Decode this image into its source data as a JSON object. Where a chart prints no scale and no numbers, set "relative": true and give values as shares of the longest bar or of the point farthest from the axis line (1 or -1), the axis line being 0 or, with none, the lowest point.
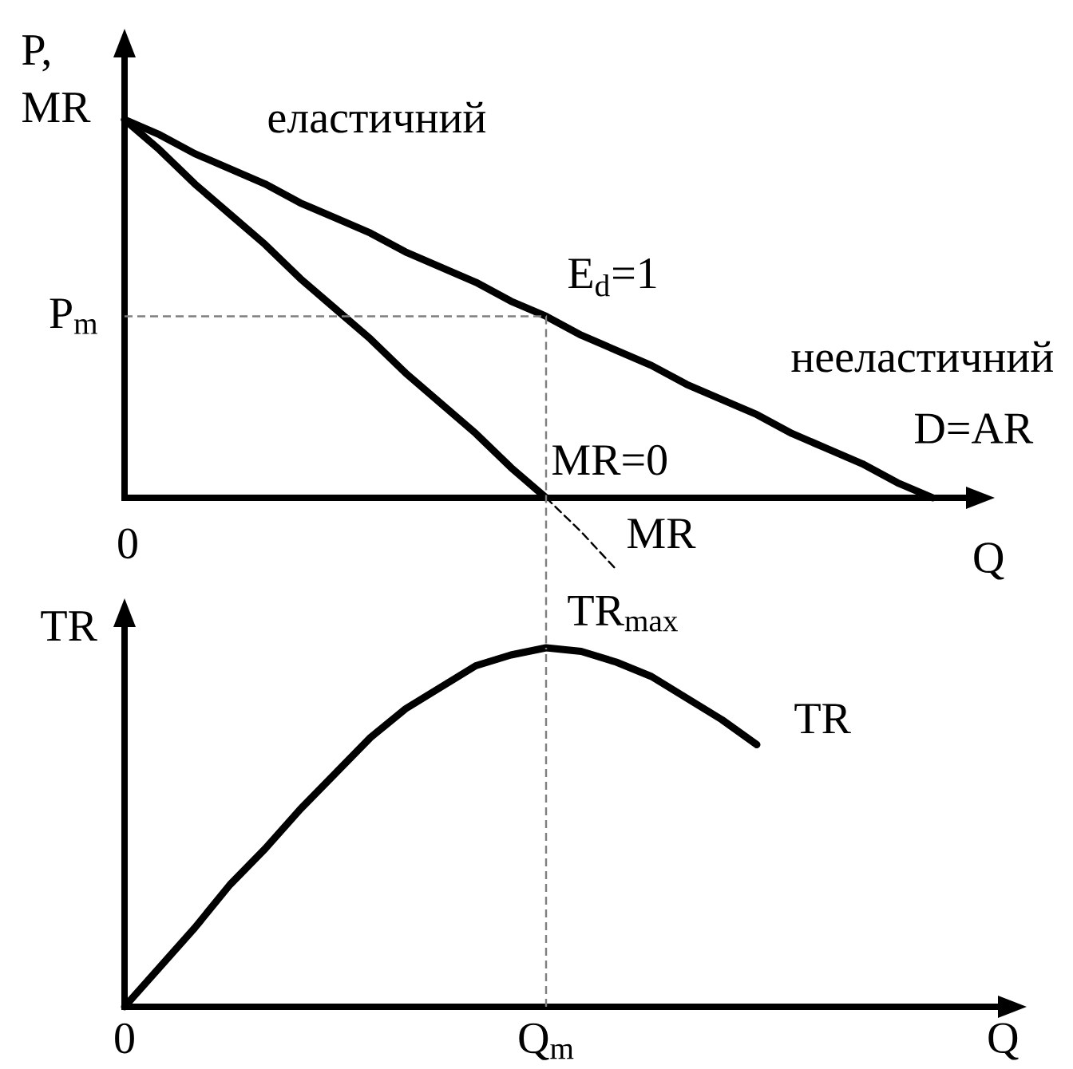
{
  "chart_data": [
    {
      "type": "line",
      "relative": true,
      "xlabel": "Q",
      "ylabel": "P, MR",
      "categories": [
        null,
        null,
        null,
        null,
        null,
        null,
        null,
        null,
        null,
        null,
        null,
        null,
        null,
        null,
        null,
        null,
        null,
        null,
        null,
        null,
        null,
        null,
        null,
        null
      ],
      "series": [
        {
          "name": "D=AR",
          "color": "#000000",
          "values": [
            1,
            0.96,
            0.91,
            0.87,
            0.83,
            0.78,
            0.74,
            0.7,
            0.65,
            0.61,
            0.57,
            0.52,
            0.48,
            0.43,
            0.39,
            0.35,
            0.3,
            0.26,
            0.22,
            0.17,
            0.13,
            0.09,
            0.04,
            0
          ]
        },
        {
          "name": "MR",
          "color": "#000000",
          "values": [
            1,
            0.92,
            0.83,
            0.75,
            0.67,
            0.58,
            0.5,
            0.42,
            0.33,
            0.25,
            0.17,
            0.08,
            0,
            null,
            null,
            null,
            null,
            null,
            null,
            null,
            null,
            null,
            null,
            null
          ]
        },
        {
          "color": "#000000",
          "line_style": "dashed",
          "values": [
            null,
            null,
            null,
            null,
            null,
            null,
            null,
            null,
            null,
            null,
            null,
            null,
            0,
            -0.09,
            -0.19,
            null,
            null,
            null,
            null,
            null,
            null,
            null,
            null,
            null
          ]
        }
      ],
      "ref_lines": [
        {
          "axis": "y",
          "value": 0.48,
          "label": "P$_{m}$",
          "color": "#7f7f7f",
          "line_style": "dashed"
        }
      ],
      "annotations": [
        "еластичний",
        "нееластичний",
        "E$_{d}$=1",
        "MR=0",
        "0"
      ]
    },
    {
      "type": "line",
      "relative": true,
      "xlabel": "Q",
      "ylabel": "TR",
      "categories": [
        "0",
        null,
        null,
        null,
        null,
        null,
        null,
        null,
        null,
        null,
        null,
        null,
        "Q$_{m}$",
        null,
        null,
        null,
        null,
        null,
        null
      ],
      "series": [
        {
          "name": "TR",
          "color": "#000000",
          "values": [
            0,
            0.11,
            0.22,
            0.34,
            0.44,
            0.55,
            0.65,
            0.75,
            0.83,
            0.89,
            0.95,
            0.98,
            1,
            0.99,
            0.96,
            0.92,
            0.86,
            0.8,
            0.73
          ]
        }
      ],
      "ref_lines": [
        {
          "axis": "x",
          "value": "Q$_{m}$",
          "color": "#7f7f7f",
          "line_style": "dashed"
        }
      ],
      "annotations": [
        {
          "text": "TR$_{max}$",
          "x": "Q$_{m}$",
          "y": 1
        }
      ]
    }
  ]
}
